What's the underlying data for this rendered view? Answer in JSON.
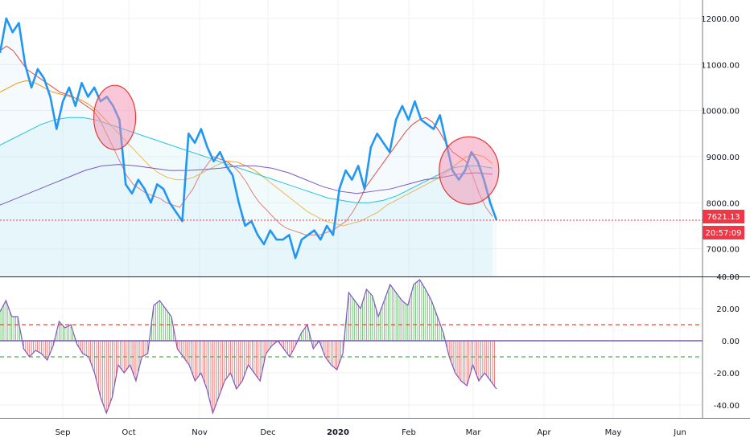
{
  "chart_data": [
    {
      "type": "line",
      "title": "",
      "ylim": [
        6400,
        12400
      ],
      "y_ticks": [
        "7000.00",
        "8000.00",
        "9000.00",
        "10000.00",
        "11000.00",
        "12000.00"
      ],
      "x_ticks": [
        {
          "label": "Sep",
          "bold": false
        },
        {
          "label": "Oct",
          "bold": false
        },
        {
          "label": "Nov",
          "bold": false
        },
        {
          "label": "Dec",
          "bold": false
        },
        {
          "label": "2020",
          "bold": true
        },
        {
          "label": "Feb",
          "bold": false
        },
        {
          "label": "Mar",
          "bold": false
        },
        {
          "label": "Apr",
          "bold": false
        },
        {
          "label": "May",
          "bold": false
        },
        {
          "label": "Jun",
          "bold": false
        }
      ],
      "price_tag": "7621.13",
      "time_tag": "20:57:09",
      "last_price": 7621.13,
      "grid": true,
      "series": [
        {
          "color": "#2196f3",
          "values": [
            11250,
            12000,
            11700,
            11900,
            11000,
            10500,
            10900,
            10700,
            10300,
            9600,
            10200,
            10500,
            10100,
            10600,
            10300,
            10500,
            10200,
            10300,
            10100,
            9800,
            8400,
            8200,
            8500,
            8300,
            8000,
            8400,
            8300,
            8000,
            7800,
            7600,
            9500,
            9300,
            9600,
            9200,
            8900,
            9100,
            8800,
            8600,
            8000,
            7500,
            7600,
            7300,
            7100,
            7400,
            7200,
            7200,
            7300,
            6800,
            7200,
            7300,
            7400,
            7200,
            7500,
            7300,
            8300,
            8700,
            8500,
            8800,
            8300,
            9200,
            9500,
            9300,
            9100,
            9800,
            10100,
            9800,
            10200,
            9800,
            9700,
            9600,
            9900,
            9300,
            8700,
            8500,
            8700,
            9100,
            8900,
            8500,
            8000,
            7621
          ]
        },
        {
          "color": "#f44336",
          "values": [
            11300,
            11400,
            11300,
            11100,
            10900,
            10800,
            10700,
            10600,
            10500,
            10400,
            10350,
            10300,
            10200,
            10100,
            10000,
            9800,
            9500,
            9200,
            8900,
            8600,
            8400,
            8300,
            8200,
            8150,
            8100,
            8000,
            7950,
            7900,
            8100,
            8300,
            8600,
            8800,
            9000,
            8950,
            8900,
            8800,
            8650,
            8450,
            8200,
            8000,
            7850,
            7700,
            7550,
            7450,
            7400,
            7350,
            7300,
            7300,
            7300,
            7350,
            7400,
            7500,
            7600,
            7800,
            8050,
            8350,
            8550,
            8750,
            8950,
            9150,
            9350,
            9550,
            9700,
            9800,
            9850,
            9750,
            9550,
            9300,
            9100,
            9000,
            8900,
            8600,
            8200,
            7900,
            7700
          ]
        },
        {
          "color": "#ff9800",
          "values": [
            10400,
            10500,
            10600,
            10650,
            10600,
            10500,
            10400,
            10350,
            10300,
            10250,
            10150,
            10000,
            9800,
            9600,
            9400,
            9200,
            9000,
            8800,
            8650,
            8550,
            8500,
            8500,
            8550,
            8650,
            8750,
            8850,
            8900,
            8880,
            8800,
            8700,
            8550,
            8400,
            8250,
            8100,
            7950,
            7800,
            7700,
            7600,
            7550,
            7500,
            7550,
            7600,
            7700,
            7800,
            7950,
            8050,
            8150,
            8250,
            8350,
            8450,
            8550,
            8700,
            8850,
            9000,
            9050,
            9000,
            8850
          ]
        },
        {
          "color": "#26c6da",
          "values": [
            9250,
            9400,
            9550,
            9700,
            9800,
            9850,
            9850,
            9800,
            9700,
            9600,
            9500,
            9400,
            9300,
            9200,
            9100,
            9000,
            8900,
            8800,
            8700,
            8600,
            8500,
            8400,
            8300,
            8200,
            8100,
            8050,
            8000,
            8000,
            8050,
            8150,
            8300,
            8450,
            8600,
            8750,
            8800,
            8800,
            8750
          ]
        },
        {
          "color": "#7e57c2",
          "values": [
            7950,
            8100,
            8250,
            8400,
            8550,
            8700,
            8800,
            8830,
            8800,
            8750,
            8700,
            8700,
            8720,
            8750,
            8800,
            8800,
            8750,
            8650,
            8500,
            8350,
            8250,
            8200,
            8250,
            8300,
            8400,
            8500,
            8550,
            8620,
            8650,
            8620
          ]
        }
      ],
      "highlights": [
        {
          "x": 0.23,
          "y": 9850
        },
        {
          "x": 0.94,
          "y": 8700
        }
      ]
    },
    {
      "type": "bar",
      "title": "",
      "ylim": [
        -48,
        40
      ],
      "y_ticks": [
        "-40.00",
        "-20.00",
        "0.00",
        "20.00",
        "40.00"
      ],
      "upper_level": 10,
      "lower_level": -10,
      "values": [
        18,
        25,
        15,
        15,
        -5,
        -10,
        -6,
        -8,
        -12,
        -3,
        12,
        8,
        10,
        -2,
        -8,
        -10,
        -20,
        -35,
        -45,
        -35,
        -15,
        -20,
        -15,
        -25,
        -10,
        -8,
        22,
        25,
        20,
        15,
        -5,
        -10,
        -15,
        -25,
        -20,
        -30,
        -45,
        -35,
        -25,
        -20,
        -30,
        -25,
        -15,
        -20,
        -25,
        -8,
        -3,
        0,
        -5,
        -10,
        -3,
        5,
        10,
        -5,
        0,
        -10,
        -15,
        -18,
        -8,
        30,
        25,
        20,
        32,
        28,
        15,
        25,
        35,
        30,
        25,
        22,
        35,
        38,
        32,
        25,
        15,
        5,
        -10,
        -20,
        -25,
        -28,
        -15,
        -25,
        -20,
        -25,
        -30
      ],
      "positive_color": "#4caf50",
      "negative_color": "#ef5350",
      "line_color": "#7e57c2"
    }
  ]
}
